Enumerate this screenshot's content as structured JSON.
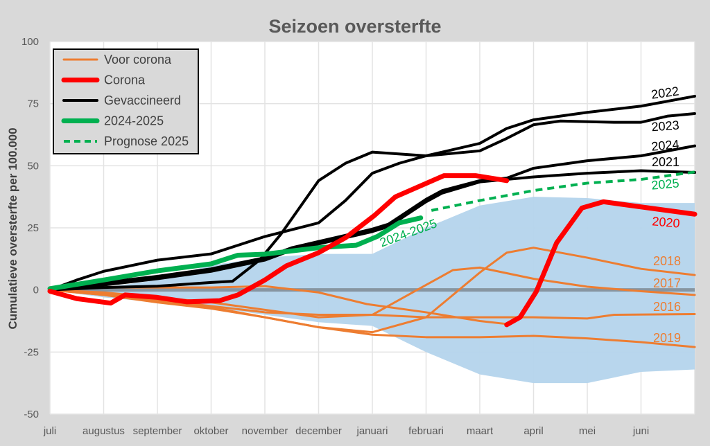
{
  "chart_data": {
    "type": "line",
    "title": "Seizoen oversterfte",
    "xlabel": "",
    "ylabel": "Cumulatieve oversterfte per 100.000",
    "ylim": [
      -50,
      100
    ],
    "yticks": [
      100,
      75,
      50,
      25,
      0,
      -25,
      -50
    ],
    "xlim": [
      0,
      12
    ],
    "xtick_labels": [
      "juli",
      "augustus",
      "september",
      "oktober",
      "november",
      "december",
      "januari",
      "februari",
      "maart",
      "april",
      "mei",
      "juni"
    ],
    "grid": true,
    "legend_position": "top-left",
    "legend": [
      {
        "label": "Voor corona",
        "color": "#ed7d31",
        "style": "solid-thin"
      },
      {
        "label": "Corona",
        "color": "#ff0000",
        "style": "solid-thick"
      },
      {
        "label": "Gevaccineerd",
        "color": "#000000",
        "style": "solid"
      },
      {
        "label": "2024-2025",
        "color": "#00b050",
        "style": "solid-thick"
      },
      {
        "label": "Prognose 2025",
        "color": "#00b050",
        "style": "dashed"
      }
    ],
    "band": {
      "color": "#b4d4ec",
      "x": [
        0,
        1,
        2,
        3,
        4,
        5,
        6,
        7,
        8,
        9,
        10,
        11,
        12
      ],
      "upper": [
        0,
        1,
        4,
        10,
        13,
        14.5,
        14.5,
        25,
        34,
        37.5,
        37,
        35,
        35
      ],
      "lower": [
        0,
        -3,
        -5,
        -7,
        -10,
        -13,
        -14.5,
        -25,
        -34,
        -37.5,
        -37.5,
        -33,
        -32
      ]
    },
    "zero_line_color": "#7f8a94",
    "series": [
      {
        "name": "2019",
        "group": "Voor corona",
        "color": "#ed7d31",
        "points": [
          [
            0,
            0
          ],
          [
            1,
            -2
          ],
          [
            2,
            -4.5
          ],
          [
            3,
            -7
          ],
          [
            4,
            -11
          ],
          [
            5,
            -15
          ],
          [
            6,
            -18
          ],
          [
            7,
            -19
          ],
          [
            8,
            -19
          ],
          [
            9,
            -18.5
          ],
          [
            10,
            -19.5
          ],
          [
            11,
            -21
          ],
          [
            12,
            -23
          ]
        ]
      },
      {
        "name": "2016",
        "group": "Voor corona",
        "color": "#ed7d31",
        "points": [
          [
            0,
            0
          ],
          [
            1,
            -1.5
          ],
          [
            2,
            -4
          ],
          [
            3,
            -6.5
          ],
          [
            4,
            -9
          ],
          [
            5,
            -10
          ],
          [
            6,
            -10
          ],
          [
            7,
            -11
          ],
          [
            8,
            -11
          ],
          [
            9,
            -11
          ],
          [
            10,
            -11.5
          ],
          [
            10.5,
            -10
          ],
          [
            12,
            -9.7
          ]
        ]
      },
      {
        "name": "2017",
        "group": "Voor corona",
        "color": "#ed7d31",
        "points": [
          [
            0,
            0
          ],
          [
            1,
            -1
          ],
          [
            2,
            -3
          ],
          [
            3,
            -5
          ],
          [
            4,
            -8
          ],
          [
            5,
            -11
          ],
          [
            6,
            -10
          ],
          [
            7,
            2
          ],
          [
            7.5,
            8
          ],
          [
            8,
            9
          ],
          [
            9,
            4.5
          ],
          [
            10,
            1.3
          ],
          [
            11,
            -0.5
          ],
          [
            12,
            -2
          ]
        ]
      },
      {
        "name": "2018",
        "group": "Voor corona",
        "color": "#ed7d31",
        "points": [
          [
            0,
            0
          ],
          [
            1,
            -2
          ],
          [
            2,
            -5
          ],
          [
            3,
            -7.5
          ],
          [
            4,
            -11
          ],
          [
            5,
            -15
          ],
          [
            6,
            -17
          ],
          [
            7,
            -11
          ],
          [
            7.5,
            -2
          ],
          [
            8,
            7
          ],
          [
            8.5,
            15
          ],
          [
            9,
            17
          ],
          [
            10,
            13
          ],
          [
            11,
            8.5
          ],
          [
            12,
            6
          ]
        ]
      },
      {
        "name": "",
        "group": "Voor corona",
        "color": "#ed7d31",
        "points": [
          [
            0,
            0
          ],
          [
            1,
            1
          ],
          [
            2,
            1
          ],
          [
            3,
            1
          ],
          [
            4,
            1.5
          ],
          [
            5,
            -1
          ],
          [
            5.9,
            -5.7
          ],
          [
            7,
            -9
          ],
          [
            8,
            -12.5
          ],
          [
            8.5,
            -13.7
          ]
        ]
      },
      {
        "name": "2020",
        "group": "Corona",
        "color": "#ff0000",
        "points": [
          [
            8.5,
            -14
          ],
          [
            8.75,
            -11
          ],
          [
            9.05,
            -0.7
          ],
          [
            9.43,
            19
          ],
          [
            9.9,
            33
          ],
          [
            10.3,
            35.5
          ],
          [
            10.94,
            33.6
          ],
          [
            12,
            30.5
          ]
        ]
      },
      {
        "name": "",
        "group": "Corona",
        "color": "#ff0000",
        "points": [
          [
            0,
            -0.5
          ],
          [
            0.5,
            -3.5
          ],
          [
            1.13,
            -5.3
          ],
          [
            1.4,
            -2
          ],
          [
            2,
            -3
          ],
          [
            2.55,
            -4.8
          ],
          [
            3.16,
            -4.3
          ],
          [
            3.5,
            -2
          ],
          [
            4,
            4
          ],
          [
            4.4,
            9.7
          ],
          [
            5,
            15
          ],
          [
            5.5,
            21
          ],
          [
            6.04,
            30
          ],
          [
            6.43,
            37.5
          ],
          [
            7.33,
            46
          ],
          [
            7.93,
            46
          ],
          [
            8.5,
            44
          ]
        ]
      },
      {
        "name": "2022",
        "group": "Gevaccineerd",
        "color": "#000000",
        "points": [
          [
            0,
            0
          ],
          [
            0.5,
            4
          ],
          [
            1,
            7.5
          ],
          [
            2,
            12
          ],
          [
            3,
            14.5
          ],
          [
            3.5,
            18
          ],
          [
            4,
            21.5
          ],
          [
            5,
            27
          ],
          [
            5.5,
            36
          ],
          [
            6,
            47
          ],
          [
            6.5,
            51
          ],
          [
            7,
            54
          ],
          [
            8,
            59
          ],
          [
            8.5,
            65
          ],
          [
            9,
            68.5
          ],
          [
            10,
            71.5
          ],
          [
            11,
            74
          ],
          [
            12,
            78
          ]
        ]
      },
      {
        "name": "2023",
        "group": "Gevaccineerd",
        "color": "#000000",
        "points": [
          [
            0,
            0
          ],
          [
            1,
            1
          ],
          [
            2,
            1.5
          ],
          [
            3,
            3
          ],
          [
            3.4,
            3.5
          ],
          [
            3.9,
            12
          ],
          [
            4.3,
            22.5
          ],
          [
            5,
            44
          ],
          [
            5.5,
            51
          ],
          [
            6,
            55.5
          ],
          [
            7,
            54
          ],
          [
            8,
            56
          ],
          [
            8.5,
            61
          ],
          [
            9,
            66.5
          ],
          [
            9.5,
            68
          ],
          [
            10.5,
            67.5
          ],
          [
            11,
            67.5
          ],
          [
            11.5,
            70
          ],
          [
            12,
            71
          ]
        ]
      },
      {
        "name": "2024",
        "group": "Gevaccineerd",
        "color": "#000000",
        "points": [
          [
            0,
            0.5
          ],
          [
            1,
            3
          ],
          [
            2,
            5.5
          ],
          [
            3,
            8.5
          ],
          [
            4,
            13
          ],
          [
            4.5,
            17
          ],
          [
            5,
            19.5
          ],
          [
            6,
            24.5
          ],
          [
            6.3,
            26.5
          ],
          [
            7,
            36.5
          ],
          [
            7.3,
            40
          ],
          [
            8,
            44
          ],
          [
            8.5,
            45
          ],
          [
            9,
            49
          ],
          [
            10,
            52
          ],
          [
            11,
            54
          ],
          [
            12,
            58
          ]
        ]
      },
      {
        "name": "2021",
        "group": "Gevaccineerd",
        "color": "#000000",
        "points": [
          [
            0,
            0
          ],
          [
            1,
            2
          ],
          [
            2,
            4.5
          ],
          [
            3,
            7.5
          ],
          [
            4,
            12
          ],
          [
            4.5,
            16
          ],
          [
            5,
            18.5
          ],
          [
            6,
            23.5
          ],
          [
            6.3,
            25.5
          ],
          [
            7,
            35.5
          ],
          [
            7.3,
            39
          ],
          [
            8,
            43.5
          ],
          [
            8.5,
            44.5
          ],
          [
            9,
            45.5
          ],
          [
            10,
            47
          ],
          [
            11,
            48
          ],
          [
            12,
            47.3
          ]
        ]
      },
      {
        "name": "2024-2025",
        "group": "2024-2025",
        "color": "#00b050",
        "points": [
          [
            0,
            0.5
          ],
          [
            1,
            4
          ],
          [
            2,
            7.7
          ],
          [
            3,
            10.5
          ],
          [
            3.5,
            14
          ],
          [
            4,
            14.4
          ],
          [
            5,
            17
          ],
          [
            5.7,
            18
          ],
          [
            6.1,
            21.6
          ],
          [
            6.5,
            27
          ],
          [
            6.9,
            29
          ]
        ]
      },
      {
        "name": "2025",
        "group": "Prognose 2025",
        "color": "#00b050",
        "points": [
          [
            7.1,
            32
          ],
          [
            8,
            36
          ],
          [
            9,
            40
          ],
          [
            10,
            43
          ],
          [
            11,
            44.5
          ],
          [
            12,
            47.5
          ]
        ]
      }
    ]
  }
}
